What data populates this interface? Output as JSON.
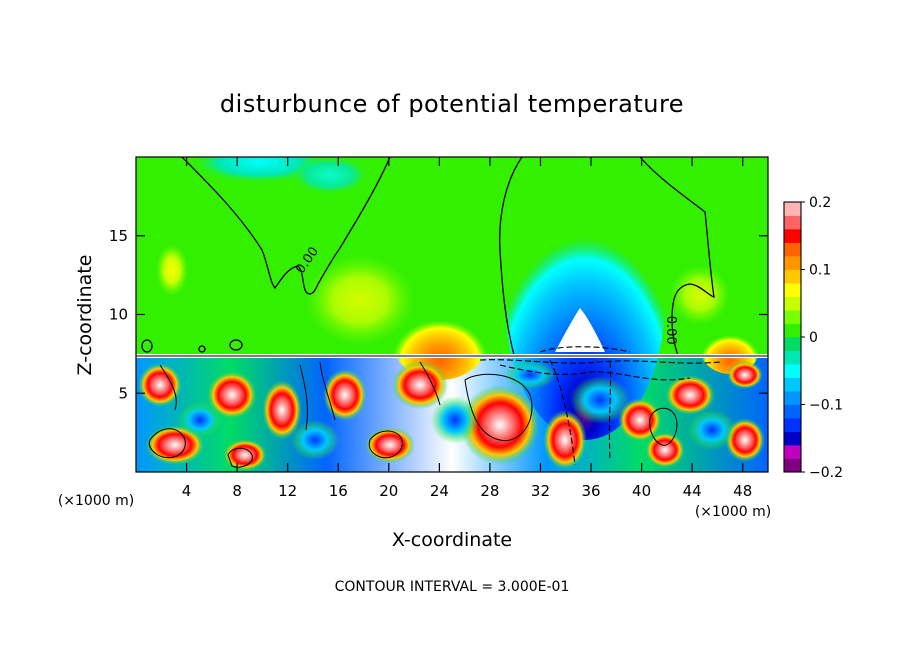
{
  "chart_data": {
    "type": "heatmap",
    "title": "disturbunce of potential temperature",
    "xlabel": "X-coordinate",
    "ylabel": "Z-coordinate",
    "x_unit_left": "(×1000 m)",
    "x_unit_right": "(×1000 m)",
    "xlim": [
      0,
      50
    ],
    "ylim": [
      0,
      20
    ],
    "x_ticks": [
      4,
      8,
      12,
      16,
      20,
      24,
      28,
      32,
      36,
      40,
      44,
      48
    ],
    "y_ticks": [
      5,
      10,
      15
    ],
    "grid": false,
    "colorbar": {
      "range": [
        -0.2,
        0.2
      ],
      "tick_values": [
        0.2,
        0.1,
        0,
        -0.1,
        -0.2
      ],
      "tick_labels": [
        "0.2",
        "0.1",
        "0",
        "−0.1",
        "−0.2"
      ],
      "colors": [
        "#800080",
        "#c000c0",
        "#0000c8",
        "#0032ff",
        "#0064ff",
        "#0096ff",
        "#00c8ff",
        "#00ffff",
        "#00e6b4",
        "#00dc64",
        "#32f000",
        "#78ff00",
        "#c8ff00",
        "#ffff00",
        "#ffc800",
        "#ff9600",
        "#ff6400",
        "#ff0000",
        "#ff6464",
        "#ffb4b4"
      ]
    },
    "contour_labels": [
      {
        "text": "0.00",
        "x": 13.8,
        "y": 13.3,
        "rotate": -55
      },
      {
        "text": "0.00",
        "x": 42.0,
        "y": 9.0,
        "rotate": 90
      }
    ],
    "annotation": "CONTOUR INTERVAL = 3.000E-01"
  }
}
